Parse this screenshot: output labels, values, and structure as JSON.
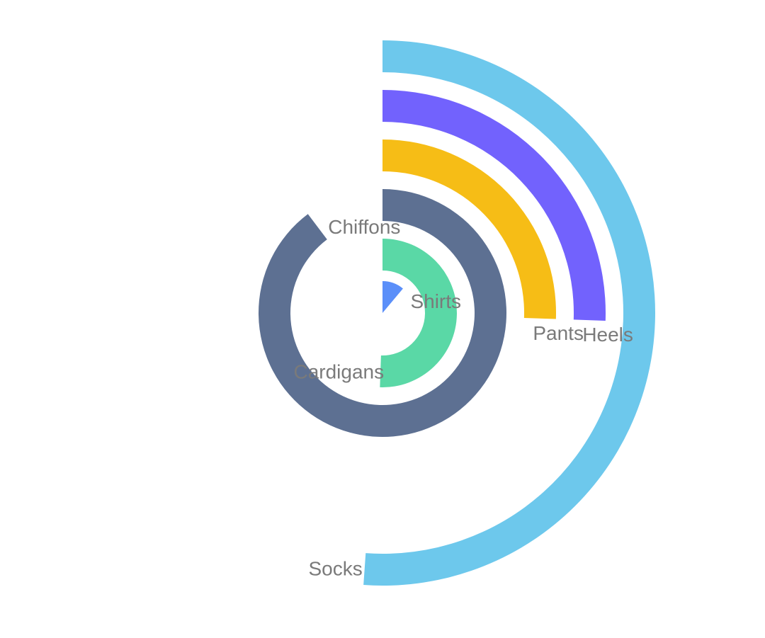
{
  "chart_data": {
    "type": "radial-bar",
    "title": "",
    "start_angle_deg": 90,
    "direction": "clockwise",
    "radius_axis_max": 360,
    "categories": [
      "Shirts",
      "Cardigans",
      "Chiffons",
      "Pants",
      "Heels",
      "Socks"
    ],
    "values": [
      40,
      182,
      323,
      92,
      92,
      184
    ],
    "colors": [
      "#5b8ff9",
      "#5ad8a6",
      "#5d7092",
      "#f6bd16",
      "#7262fd",
      "#6dc8ec"
    ]
  }
}
